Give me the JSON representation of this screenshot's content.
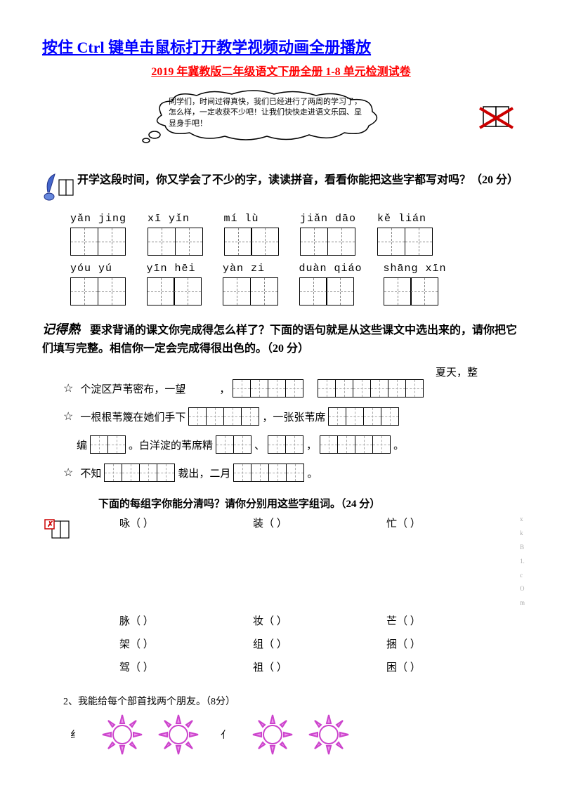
{
  "title_link": "按住 Ctrl 键单击鼠标打开教学视频动画全册播放",
  "subtitle": "2019 年冀教版二年级语文下册全册 1-8 单元检测试卷",
  "bubble_text": "同学们，时间过得真快，我们已经进行了两周的学习了，怎么样，一定收获不少吧！让我们快快走进语文乐园、显显身手吧！",
  "section1": {
    "text": "开学这段时间，你又学会了不少的字，读读拼音，看看你能把这些字都写对吗？（20 分）",
    "row1": [
      {
        "pinyin": "yǎn jing",
        "boxes": 2
      },
      {
        "pinyin": "xī yǐn",
        "boxes": 2
      },
      {
        "pinyin": "mí lù",
        "boxes": 2
      },
      {
        "pinyin": "jiǎn dāo",
        "boxes": 2
      },
      {
        "pinyin": "kě lián",
        "boxes": 2
      }
    ],
    "row2": [
      {
        "pinyin": "yóu yú",
        "boxes": 2
      },
      {
        "pinyin": "yīn hēi",
        "boxes": 2
      },
      {
        "pinyin": "yàn zi",
        "boxes": 2
      },
      {
        "pinyin": "duàn qiáo",
        "boxes": 2
      },
      {
        "pinyin": "shāng xīn",
        "boxes": 2
      }
    ]
  },
  "section2": {
    "label": "记得熟",
    "text": "要求背诵的课文你完成得怎么样了？下面的语句就是从这些课文中选出来的，请你把它们填写完整。相信你一定会完成得很出色的。（20 分）",
    "summer_text": "夏天，整",
    "line1_a": "个淀区芦苇密布，一望",
    "line1_b": "，",
    "line2_a": "一根根苇篾在她们手下",
    "line2_b": "，一张张苇席",
    "line3_a": "编",
    "line3_b": "。白洋淀的苇席精",
    "line3_c": "、",
    "line3_d": "，",
    "line3_e": "。",
    "line4_a": "不知",
    "line4_b": "裁出，二月",
    "line4_c": "。"
  },
  "section3": {
    "title": "下面的每组字你能分清吗？请你分别用这些字组词。（24 分）",
    "rows": [
      [
        "咏（        ）",
        "装（        ）",
        "忙（        ）"
      ],
      [
        "脉（        ）",
        "妆（        ）",
        "芒（        ）"
      ],
      [
        "架（        ）",
        "组（        ）",
        "捆（        ）"
      ],
      [
        "驾（        ）",
        "祖（        ）",
        "困（        ）"
      ]
    ],
    "tiny": "x k B 1. c O m"
  },
  "section4": {
    "text": "2、我能给每个部首找两个朋友。（8分）",
    "rad1": "纟",
    "rad2": "亻"
  },
  "colors": {
    "link": "#0000ff",
    "subtitle": "#ff0000",
    "sun_fill": "#ee99ee",
    "sun_stroke": "#cc44cc",
    "x_mark": "#cc0000"
  }
}
